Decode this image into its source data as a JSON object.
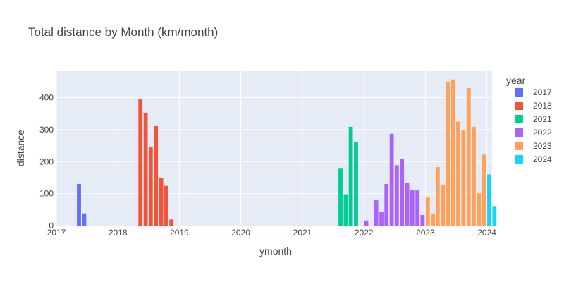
{
  "chart_data": {
    "type": "bar",
    "title": "Total distance by Month (km/month)",
    "xlabel": "ymonth",
    "ylabel": "distance",
    "ylim": [
      0,
      485
    ],
    "xlim": [
      "2017-01-01",
      "2024-02-01"
    ],
    "x_ticks": [
      "2017",
      "2018",
      "2019",
      "2020",
      "2021",
      "2022",
      "2023",
      "2024"
    ],
    "y_ticks": [
      0,
      100,
      200,
      300,
      400
    ],
    "grid": true,
    "legend_title": "year",
    "legend_position": "right",
    "series": [
      {
        "name": "2017",
        "color": "#636efa",
        "points": [
          {
            "x": "2017-05",
            "y": 130
          },
          {
            "x": "2017-06",
            "y": 38
          }
        ]
      },
      {
        "name": "2018",
        "color": "#ef553b",
        "points": [
          {
            "x": "2018-05",
            "y": 395
          },
          {
            "x": "2018-06",
            "y": 353
          },
          {
            "x": "2018-07",
            "y": 247
          },
          {
            "x": "2018-08",
            "y": 311
          },
          {
            "x": "2018-09",
            "y": 150
          },
          {
            "x": "2018-10",
            "y": 124
          },
          {
            "x": "2018-11",
            "y": 19
          }
        ]
      },
      {
        "name": "2021",
        "color": "#00cc96",
        "points": [
          {
            "x": "2021-08",
            "y": 178
          },
          {
            "x": "2021-09",
            "y": 98
          },
          {
            "x": "2021-10",
            "y": 309
          },
          {
            "x": "2021-11",
            "y": 262
          }
        ]
      },
      {
        "name": "2022",
        "color": "#ab63fa",
        "points": [
          {
            "x": "2022-01",
            "y": 16
          },
          {
            "x": "2022-03",
            "y": 79
          },
          {
            "x": "2022-04",
            "y": 43
          },
          {
            "x": "2022-05",
            "y": 130
          },
          {
            "x": "2022-06",
            "y": 287
          },
          {
            "x": "2022-07",
            "y": 189
          },
          {
            "x": "2022-08",
            "y": 209
          },
          {
            "x": "2022-09",
            "y": 134
          },
          {
            "x": "2022-10",
            "y": 112
          },
          {
            "x": "2022-11",
            "y": 110
          },
          {
            "x": "2022-12",
            "y": 33
          }
        ]
      },
      {
        "name": "2023",
        "color": "#ffa15a",
        "points": [
          {
            "x": "2023-01",
            "y": 88
          },
          {
            "x": "2023-02",
            "y": 38
          },
          {
            "x": "2023-03",
            "y": 183
          },
          {
            "x": "2023-04",
            "y": 128
          },
          {
            "x": "2023-05",
            "y": 449
          },
          {
            "x": "2023-06",
            "y": 457
          },
          {
            "x": "2023-07",
            "y": 325
          },
          {
            "x": "2023-08",
            "y": 298
          },
          {
            "x": "2023-09",
            "y": 430
          },
          {
            "x": "2023-10",
            "y": 309
          },
          {
            "x": "2023-11",
            "y": 101
          },
          {
            "x": "2023-12",
            "y": 222
          }
        ]
      },
      {
        "name": "2024",
        "color": "#19d3f3",
        "points": [
          {
            "x": "2024-01",
            "y": 160
          },
          {
            "x": "2024-02",
            "y": 61
          }
        ]
      }
    ]
  }
}
